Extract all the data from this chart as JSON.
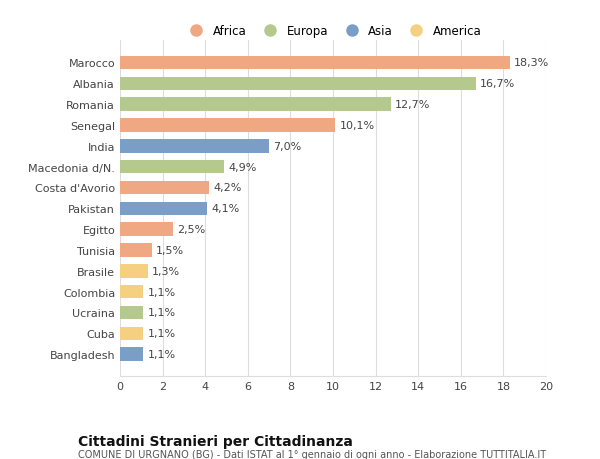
{
  "categories": [
    "Marocco",
    "Albania",
    "Romania",
    "Senegal",
    "India",
    "Macedonia d/N.",
    "Costa d'Avorio",
    "Pakistan",
    "Egitto",
    "Tunisia",
    "Brasile",
    "Colombia",
    "Ucraina",
    "Cuba",
    "Bangladesh"
  ],
  "values": [
    18.3,
    16.7,
    12.7,
    10.1,
    7.0,
    4.9,
    4.2,
    4.1,
    2.5,
    1.5,
    1.3,
    1.1,
    1.1,
    1.1,
    1.1
  ],
  "labels": [
    "18,3%",
    "16,7%",
    "12,7%",
    "10,1%",
    "7,0%",
    "4,9%",
    "4,2%",
    "4,1%",
    "2,5%",
    "1,5%",
    "1,3%",
    "1,1%",
    "1,1%",
    "1,1%",
    "1,1%"
  ],
  "continents": [
    "Africa",
    "Europa",
    "Europa",
    "Africa",
    "Asia",
    "Europa",
    "Africa",
    "Asia",
    "Africa",
    "Africa",
    "America",
    "America",
    "Europa",
    "America",
    "Asia"
  ],
  "continent_colors": {
    "Africa": "#F0A882",
    "Europa": "#B5C98E",
    "Asia": "#7B9EC9",
    "America": "#F5D080"
  },
  "legend_order": [
    "Africa",
    "Europa",
    "Asia",
    "America"
  ],
  "xlim": [
    0,
    20
  ],
  "xticks": [
    0,
    2,
    4,
    6,
    8,
    10,
    12,
    14,
    16,
    18,
    20
  ],
  "title": "Cittadini Stranieri per Cittadinanza",
  "subtitle": "COMUNE DI URGNANO (BG) - Dati ISTAT al 1° gennaio di ogni anno - Elaborazione TUTTITALIA.IT",
  "background_color": "#ffffff",
  "grid_color": "#dddddd",
  "bar_height": 0.65,
  "label_fontsize": 8,
  "tick_fontsize": 8,
  "title_fontsize": 10,
  "subtitle_fontsize": 7
}
